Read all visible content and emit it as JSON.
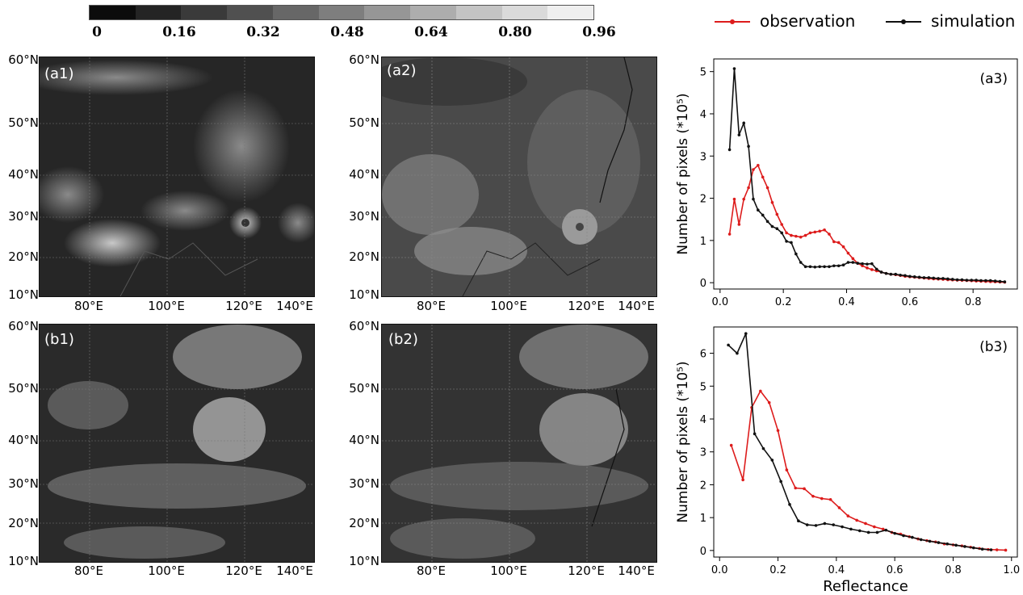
{
  "colorbar": {
    "ticks": [
      "0",
      "0.16",
      "0.32",
      "0.48",
      "0.64",
      "0.80",
      "0.96"
    ],
    "colors": [
      "#0c0c0c",
      "#242424",
      "#3a3a3a",
      "#505050",
      "#676767",
      "#7e7e7e",
      "#969696",
      "#adadad",
      "#c4c4c4",
      "#dadada",
      "#efefef"
    ]
  },
  "legend": {
    "observation": {
      "label": "observation",
      "color": "#dd1c1c"
    },
    "simulation": {
      "label": "simulation",
      "color": "#111111"
    }
  },
  "maps": {
    "lat_labels": [
      "60°N",
      "50°N",
      "40°N",
      "30°N",
      "20°N",
      "10°N"
    ],
    "lon_labels_row1": [
      "80°E",
      "100°E",
      "120°E",
      "140°E"
    ],
    "lon_labels_row2a": [
      "80°E",
      "100°E",
      "120°E",
      "140°E"
    ],
    "lon_labels_row2b": [
      "80°E",
      "100°E",
      "120°E",
      "140°E"
    ],
    "panels": {
      "a1": "(a1)",
      "a2": "(a2)",
      "b1": "(b1)",
      "b2": "(b2)"
    }
  },
  "chart_data": [
    {
      "type": "line",
      "panel_label": "(a3)",
      "xlabel": "",
      "ylabel": "Number of pixels (*10⁵)",
      "xlim": [
        -0.02,
        0.94
      ],
      "ylim": [
        -0.15,
        5.3
      ],
      "xticks": [
        0.0,
        0.2,
        0.4,
        0.6,
        0.8
      ],
      "xtick_labels": [
        "0.0",
        "0.2",
        "0.4",
        "0.6",
        "0.8"
      ],
      "yticks": [
        0,
        1,
        2,
        3,
        4,
        5
      ],
      "ytick_labels": [
        "0",
        "1",
        "2",
        "3",
        "4",
        "5"
      ],
      "series": [
        {
          "name": "observation",
          "color": "#dd1c1c",
          "x": [
            0.03,
            0.045,
            0.06,
            0.075,
            0.09,
            0.105,
            0.12,
            0.135,
            0.15,
            0.165,
            0.18,
            0.195,
            0.21,
            0.225,
            0.24,
            0.255,
            0.27,
            0.285,
            0.3,
            0.315,
            0.33,
            0.345,
            0.36,
            0.375,
            0.39,
            0.405,
            0.42,
            0.435,
            0.45,
            0.465,
            0.48,
            0.495,
            0.51,
            0.525,
            0.54,
            0.555,
            0.57,
            0.585,
            0.6,
            0.615,
            0.63,
            0.645,
            0.66,
            0.675,
            0.69,
            0.705,
            0.72,
            0.735,
            0.75,
            0.765,
            0.78,
            0.795,
            0.81,
            0.825,
            0.84,
            0.855,
            0.87,
            0.885,
            0.9
          ],
          "y": [
            1.15,
            1.98,
            1.38,
            1.98,
            2.25,
            2.68,
            2.78,
            2.5,
            2.25,
            1.9,
            1.62,
            1.38,
            1.18,
            1.12,
            1.1,
            1.08,
            1.12,
            1.18,
            1.2,
            1.22,
            1.25,
            1.15,
            0.97,
            0.95,
            0.85,
            0.7,
            0.57,
            0.46,
            0.4,
            0.35,
            0.31,
            0.28,
            0.25,
            0.22,
            0.2,
            0.19,
            0.17,
            0.15,
            0.14,
            0.13,
            0.12,
            0.11,
            0.1,
            0.09,
            0.085,
            0.08,
            0.07,
            0.065,
            0.06,
            0.055,
            0.05,
            0.045,
            0.04,
            0.035,
            0.03,
            0.025,
            0.02,
            0.015,
            0.01
          ]
        },
        {
          "name": "simulation",
          "color": "#111111",
          "x": [
            0.03,
            0.045,
            0.06,
            0.075,
            0.09,
            0.105,
            0.12,
            0.135,
            0.15,
            0.165,
            0.18,
            0.195,
            0.21,
            0.225,
            0.24,
            0.255,
            0.27,
            0.285,
            0.3,
            0.315,
            0.33,
            0.345,
            0.36,
            0.375,
            0.39,
            0.405,
            0.42,
            0.435,
            0.45,
            0.465,
            0.48,
            0.495,
            0.51,
            0.525,
            0.54,
            0.555,
            0.57,
            0.585,
            0.6,
            0.615,
            0.63,
            0.645,
            0.66,
            0.675,
            0.69,
            0.705,
            0.72,
            0.735,
            0.75,
            0.765,
            0.78,
            0.795,
            0.81,
            0.825,
            0.84,
            0.855,
            0.87,
            0.885,
            0.9
          ],
          "y": [
            3.15,
            5.07,
            3.5,
            3.78,
            3.23,
            1.98,
            1.72,
            1.6,
            1.45,
            1.33,
            1.28,
            1.18,
            0.98,
            0.95,
            0.68,
            0.48,
            0.38,
            0.38,
            0.37,
            0.38,
            0.38,
            0.38,
            0.4,
            0.4,
            0.42,
            0.48,
            0.48,
            0.46,
            0.45,
            0.44,
            0.45,
            0.32,
            0.25,
            0.22,
            0.2,
            0.2,
            0.18,
            0.17,
            0.15,
            0.14,
            0.13,
            0.12,
            0.12,
            0.11,
            0.1,
            0.1,
            0.09,
            0.08,
            0.07,
            0.07,
            0.06,
            0.06,
            0.06,
            0.05,
            0.05,
            0.05,
            0.04,
            0.03,
            0.02
          ]
        }
      ]
    },
    {
      "type": "line",
      "panel_label": "(b3)",
      "xlabel": "Reflectance",
      "ylabel": "Number of pixels (*10⁵)",
      "xlim": [
        -0.02,
        1.02
      ],
      "ylim": [
        -0.2,
        6.8
      ],
      "xticks": [
        0.0,
        0.2,
        0.4,
        0.6,
        0.8,
        1.0
      ],
      "xtick_labels": [
        "0.0",
        "0.2",
        "0.4",
        "0.6",
        "0.8",
        "1.0"
      ],
      "yticks": [
        0,
        1,
        2,
        3,
        4,
        5,
        6
      ],
      "ytick_labels": [
        "0",
        "1",
        "2",
        "3",
        "4",
        "5",
        "6"
      ],
      "series": [
        {
          "name": "observation",
          "color": "#dd1c1c",
          "x": [
            0.04,
            0.08,
            0.11,
            0.14,
            0.17,
            0.2,
            0.23,
            0.26,
            0.29,
            0.32,
            0.35,
            0.38,
            0.41,
            0.44,
            0.47,
            0.5,
            0.53,
            0.56,
            0.59,
            0.62,
            0.65,
            0.68,
            0.71,
            0.74,
            0.77,
            0.8,
            0.83,
            0.86,
            0.89,
            0.92,
            0.95,
            0.98
          ],
          "y": [
            3.2,
            2.15,
            4.35,
            4.85,
            4.5,
            3.65,
            2.45,
            1.9,
            1.88,
            1.65,
            1.58,
            1.55,
            1.3,
            1.05,
            0.92,
            0.82,
            0.72,
            0.65,
            0.55,
            0.5,
            0.42,
            0.35,
            0.3,
            0.26,
            0.2,
            0.17,
            0.14,
            0.1,
            0.06,
            0.03,
            0.02,
            0.01
          ]
        },
        {
          "name": "simulation",
          "color": "#111111",
          "x": [
            0.03,
            0.06,
            0.09,
            0.12,
            0.15,
            0.18,
            0.21,
            0.24,
            0.27,
            0.3,
            0.33,
            0.36,
            0.39,
            0.42,
            0.45,
            0.48,
            0.51,
            0.54,
            0.57,
            0.6,
            0.63,
            0.66,
            0.69,
            0.72,
            0.75,
            0.78,
            0.81,
            0.84,
            0.87,
            0.9,
            0.93
          ],
          "y": [
            6.25,
            6.0,
            6.6,
            3.55,
            3.1,
            2.75,
            2.1,
            1.4,
            0.9,
            0.78,
            0.76,
            0.82,
            0.78,
            0.72,
            0.65,
            0.6,
            0.55,
            0.55,
            0.62,
            0.52,
            0.45,
            0.4,
            0.33,
            0.28,
            0.24,
            0.2,
            0.16,
            0.12,
            0.08,
            0.04,
            0.02
          ]
        }
      ]
    }
  ]
}
